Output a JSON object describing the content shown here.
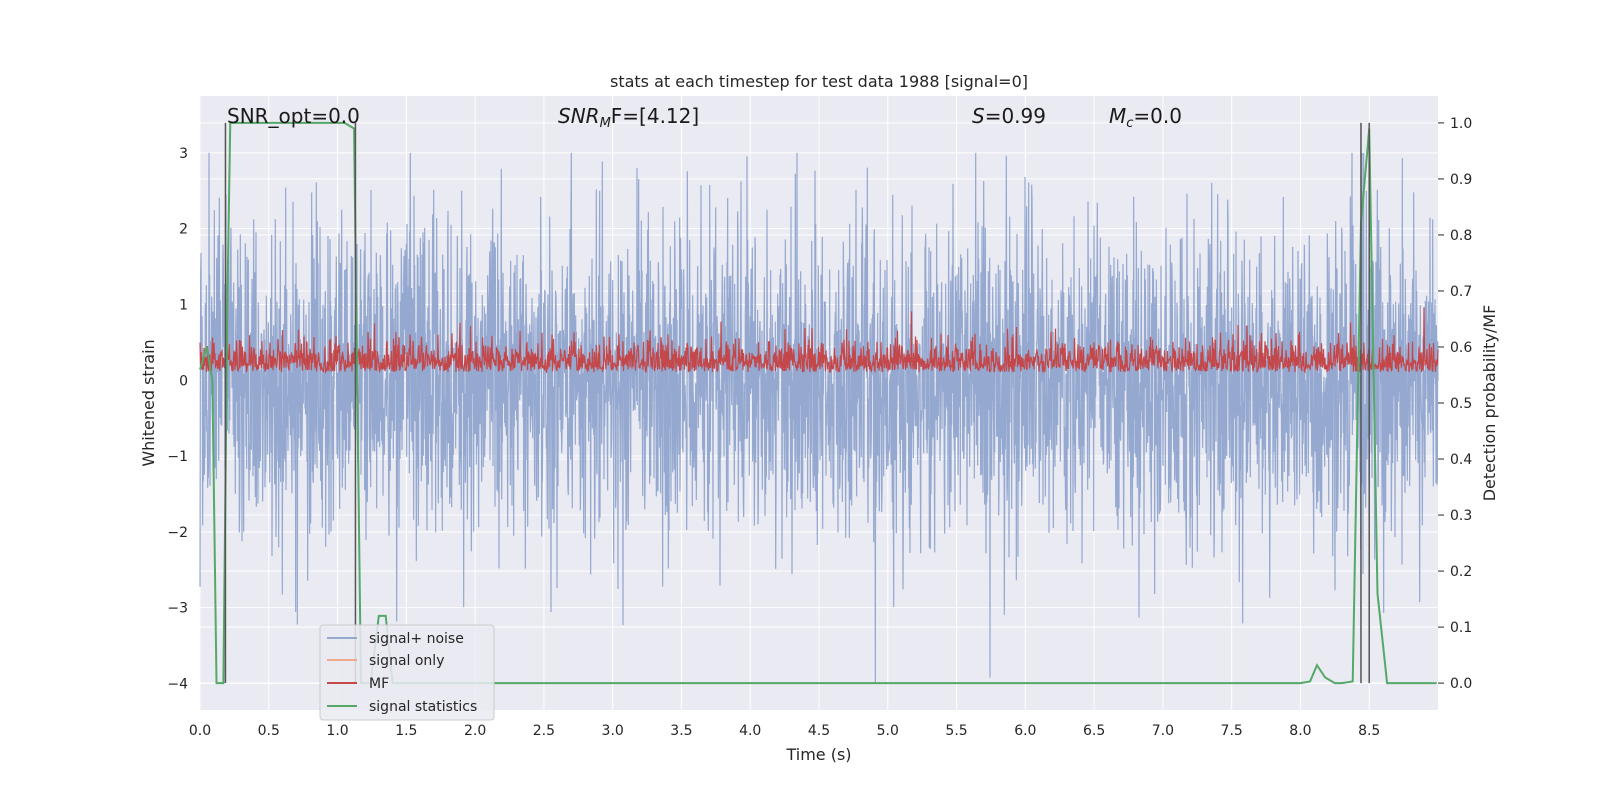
{
  "chart_data": {
    "type": "line",
    "title": "stats at each timestep for test data 1988 [signal=0]",
    "xlabel": "Time (s)",
    "ylabel_left": "Whitened strain",
    "ylabel_right": "Detection probability/MF",
    "xlim": [
      0.0,
      9.0
    ],
    "ylim_left": [
      -4.35,
      3.75
    ],
    "ylim_right": [
      -0.048,
      1.048
    ],
    "x_ticks": [
      "0.0",
      "0.5",
      "1.0",
      "1.5",
      "2.0",
      "2.5",
      "3.0",
      "3.5",
      "4.0",
      "4.5",
      "5.0",
      "5.5",
      "6.0",
      "6.5",
      "7.0",
      "7.5",
      "8.0",
      "8.5"
    ],
    "y_ticks_left": [
      "3",
      "2",
      "1",
      "0",
      "−1",
      "−2",
      "−3",
      "−4"
    ],
    "y_ticks_right": [
      "1.0",
      "0.9",
      "0.8",
      "0.7",
      "0.6",
      "0.5",
      "0.4",
      "0.3",
      "0.2",
      "0.1",
      "0.0"
    ],
    "annotations": {
      "snr_opt": "SNR_opt=0.0",
      "snr_mf_italic": "SNR",
      "snr_mf_sub": "M",
      "snr_mf_tail": "F=[4.12]",
      "s_italic": "S",
      "s_value": "=0.99",
      "mc_italic": "M",
      "mc_sub": "c",
      "mc_value": "=0.0"
    },
    "grid": true,
    "legend": {
      "placement": "lower-left",
      "entries": [
        "signal+ noise",
        "signal only",
        "MF",
        "signal statistics"
      ]
    },
    "series": [
      {
        "name": "signal+ noise",
        "color": "#95a9d0",
        "axis": "left",
        "kind": "noise",
        "amplitude_range": [
          -4.0,
          3.0
        ]
      },
      {
        "name": "signal only",
        "color": "#f0a88a",
        "axis": "left",
        "values": []
      },
      {
        "name": "MF",
        "color": "#c4474a",
        "axis": "right",
        "kind": "noise",
        "baseline": 0.555,
        "range": [
          0.545,
          0.705
        ]
      },
      {
        "name": "signal statistics",
        "color": "#55a868",
        "axis": "right",
        "x": [
          0.0,
          0.05,
          0.09,
          0.12,
          0.17,
          0.2,
          0.22,
          0.25,
          1.0,
          1.05,
          1.12,
          1.17,
          1.2,
          1.24,
          1.3,
          1.35,
          1.4,
          1.5,
          7.5,
          7.8,
          8.0,
          8.07,
          8.12,
          8.18,
          8.25,
          8.3,
          8.38,
          8.44,
          8.5,
          8.56,
          8.63,
          8.7,
          8.99
        ],
        "y": [
          0.56,
          0.6,
          0.54,
          0.0,
          0.0,
          0.7,
          1.0,
          1.0,
          1.0,
          1.0,
          0.99,
          0.0,
          0.0,
          0.0,
          0.12,
          0.12,
          0.0,
          0.0,
          0.0,
          0.0,
          0.0,
          0.003,
          0.032,
          0.01,
          0.0,
          0.0,
          0.003,
          0.82,
          0.99,
          0.16,
          0.0,
          0.0,
          0.0
        ]
      }
    ],
    "vertical_markers": {
      "color": "#555555",
      "x": [
        0.185,
        1.13,
        8.44,
        8.5
      ],
      "y_range_right": [
        0.0,
        1.0
      ]
    }
  }
}
